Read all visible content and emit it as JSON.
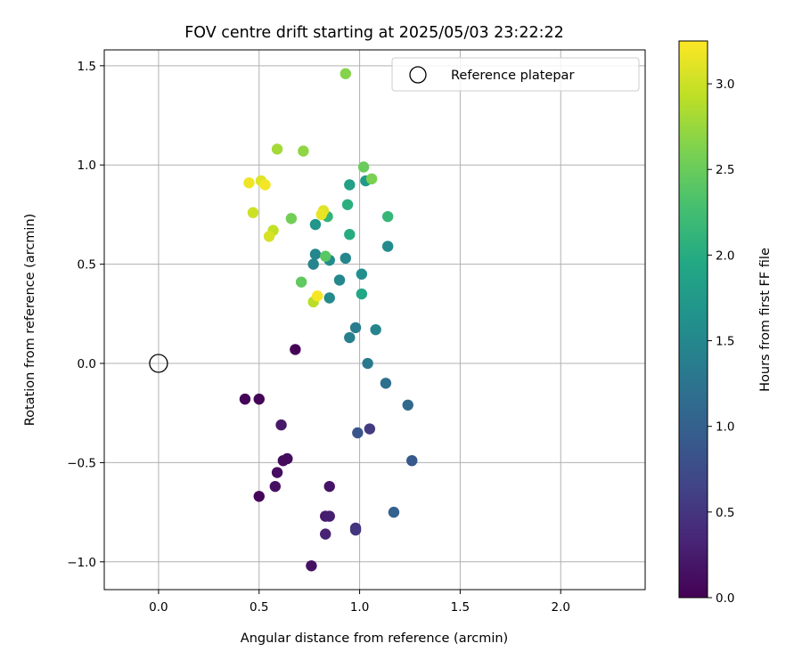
{
  "chart_data": {
    "type": "scatter",
    "title": "FOV centre drift starting at 2025/05/03 23:22:22",
    "xlabel": "Angular distance from reference (arcmin)",
    "ylabel": "Rotation from reference (arcmin)",
    "xlim": [
      -0.27,
      2.42
    ],
    "ylim": [
      -1.14,
      1.58
    ],
    "xticks": [
      0.0,
      0.5,
      1.0,
      1.5,
      2.0
    ],
    "xtick_labels": [
      "0.0",
      "0.5",
      "1.0",
      "1.5",
      "2.0"
    ],
    "yticks": [
      -1.0,
      -0.5,
      0.0,
      0.5,
      1.0,
      1.5
    ],
    "ytick_labels": [
      "−1.0",
      "−0.5",
      "0.0",
      "0.5",
      "1.0",
      "1.5"
    ],
    "grid": true,
    "legend": {
      "position": "top-right",
      "entries": [
        "Reference platepar"
      ]
    },
    "reference_point": {
      "label": "Reference platepar",
      "x": 0.0,
      "y": 0.0
    },
    "colorbar": {
      "label": "Hours from first FF file",
      "colormap": "viridis",
      "range": [
        0.0,
        3.25
      ],
      "ticks": [
        0.0,
        0.5,
        1.0,
        1.5,
        2.0,
        2.5,
        3.0
      ],
      "tick_labels": [
        "0.0",
        "0.5",
        "1.0",
        "1.5",
        "2.0",
        "2.5",
        "3.0"
      ]
    },
    "points": [
      {
        "x": 0.68,
        "y": 0.07,
        "t": 0.02
      },
      {
        "x": 0.43,
        "y": -0.18,
        "t": 0.03
      },
      {
        "x": 0.5,
        "y": -0.18,
        "t": 0.04
      },
      {
        "x": 0.5,
        "y": -0.67,
        "t": 0.05
      },
      {
        "x": 0.62,
        "y": -0.49,
        "t": 0.08
      },
      {
        "x": 0.64,
        "y": -0.48,
        "t": 0.1
      },
      {
        "x": 0.59,
        "y": -0.55,
        "t": 0.12
      },
      {
        "x": 0.58,
        "y": -0.62,
        "t": 0.14
      },
      {
        "x": 0.76,
        "y": -1.02,
        "t": 0.15
      },
      {
        "x": 0.85,
        "y": -0.62,
        "t": 0.18
      },
      {
        "x": 0.61,
        "y": -0.31,
        "t": 0.22
      },
      {
        "x": 0.83,
        "y": -0.77,
        "t": 0.25
      },
      {
        "x": 0.85,
        "y": -0.77,
        "t": 0.28
      },
      {
        "x": 0.83,
        "y": -0.86,
        "t": 0.32
      },
      {
        "x": 0.98,
        "y": -0.83,
        "t": 0.45
      },
      {
        "x": 0.98,
        "y": -0.84,
        "t": 0.5
      },
      {
        "x": 1.05,
        "y": -0.33,
        "t": 0.55
      },
      {
        "x": 0.99,
        "y": -0.35,
        "t": 0.85
      },
      {
        "x": 1.26,
        "y": -0.49,
        "t": 0.9
      },
      {
        "x": 1.17,
        "y": -0.75,
        "t": 1.0
      },
      {
        "x": 1.24,
        "y": -0.21,
        "t": 1.1
      },
      {
        "x": 1.13,
        "y": -0.1,
        "t": 1.2
      },
      {
        "x": 1.04,
        "y": 0.0,
        "t": 1.3
      },
      {
        "x": 0.95,
        "y": 0.13,
        "t": 1.4
      },
      {
        "x": 0.98,
        "y": 0.18,
        "t": 1.35
      },
      {
        "x": 1.08,
        "y": 0.17,
        "t": 1.45
      },
      {
        "x": 0.9,
        "y": 0.42,
        "t": 1.5
      },
      {
        "x": 0.85,
        "y": 0.33,
        "t": 1.55
      },
      {
        "x": 0.77,
        "y": 0.5,
        "t": 1.45
      },
      {
        "x": 0.78,
        "y": 0.55,
        "t": 1.5
      },
      {
        "x": 0.85,
        "y": 0.52,
        "t": 1.55
      },
      {
        "x": 0.93,
        "y": 0.53,
        "t": 1.5
      },
      {
        "x": 1.01,
        "y": 0.45,
        "t": 1.6
      },
      {
        "x": 1.14,
        "y": 0.59,
        "t": 1.55
      },
      {
        "x": 0.78,
        "y": 0.7,
        "t": 1.7
      },
      {
        "x": 1.03,
        "y": 0.92,
        "t": 1.75
      },
      {
        "x": 0.95,
        "y": 0.9,
        "t": 1.85
      },
      {
        "x": 1.01,
        "y": 0.35,
        "t": 1.95
      },
      {
        "x": 0.95,
        "y": 0.65,
        "t": 2.0
      },
      {
        "x": 0.94,
        "y": 0.8,
        "t": 2.05
      },
      {
        "x": 0.84,
        "y": 0.74,
        "t": 2.1
      },
      {
        "x": 1.14,
        "y": 0.74,
        "t": 2.15
      },
      {
        "x": 0.83,
        "y": 0.54,
        "t": 2.4
      },
      {
        "x": 0.71,
        "y": 0.41,
        "t": 2.45
      },
      {
        "x": 0.66,
        "y": 0.73,
        "t": 2.55
      },
      {
        "x": 1.02,
        "y": 0.99,
        "t": 2.5
      },
      {
        "x": 1.06,
        "y": 0.93,
        "t": 2.6
      },
      {
        "x": 0.93,
        "y": 1.46,
        "t": 2.65
      },
      {
        "x": 0.72,
        "y": 1.07,
        "t": 2.7
      },
      {
        "x": 0.59,
        "y": 1.08,
        "t": 2.8
      },
      {
        "x": 0.77,
        "y": 0.31,
        "t": 2.9
      },
      {
        "x": 0.57,
        "y": 0.67,
        "t": 2.95
      },
      {
        "x": 0.47,
        "y": 0.76,
        "t": 3.0
      },
      {
        "x": 0.55,
        "y": 0.64,
        "t": 3.05
      },
      {
        "x": 0.82,
        "y": 0.77,
        "t": 3.1
      },
      {
        "x": 0.81,
        "y": 0.75,
        "t": 3.15
      },
      {
        "x": 0.51,
        "y": 0.92,
        "t": 3.1
      },
      {
        "x": 0.45,
        "y": 0.91,
        "t": 3.18
      },
      {
        "x": 0.53,
        "y": 0.9,
        "t": 3.2
      },
      {
        "x": 0.79,
        "y": 0.34,
        "t": 3.22
      }
    ]
  }
}
